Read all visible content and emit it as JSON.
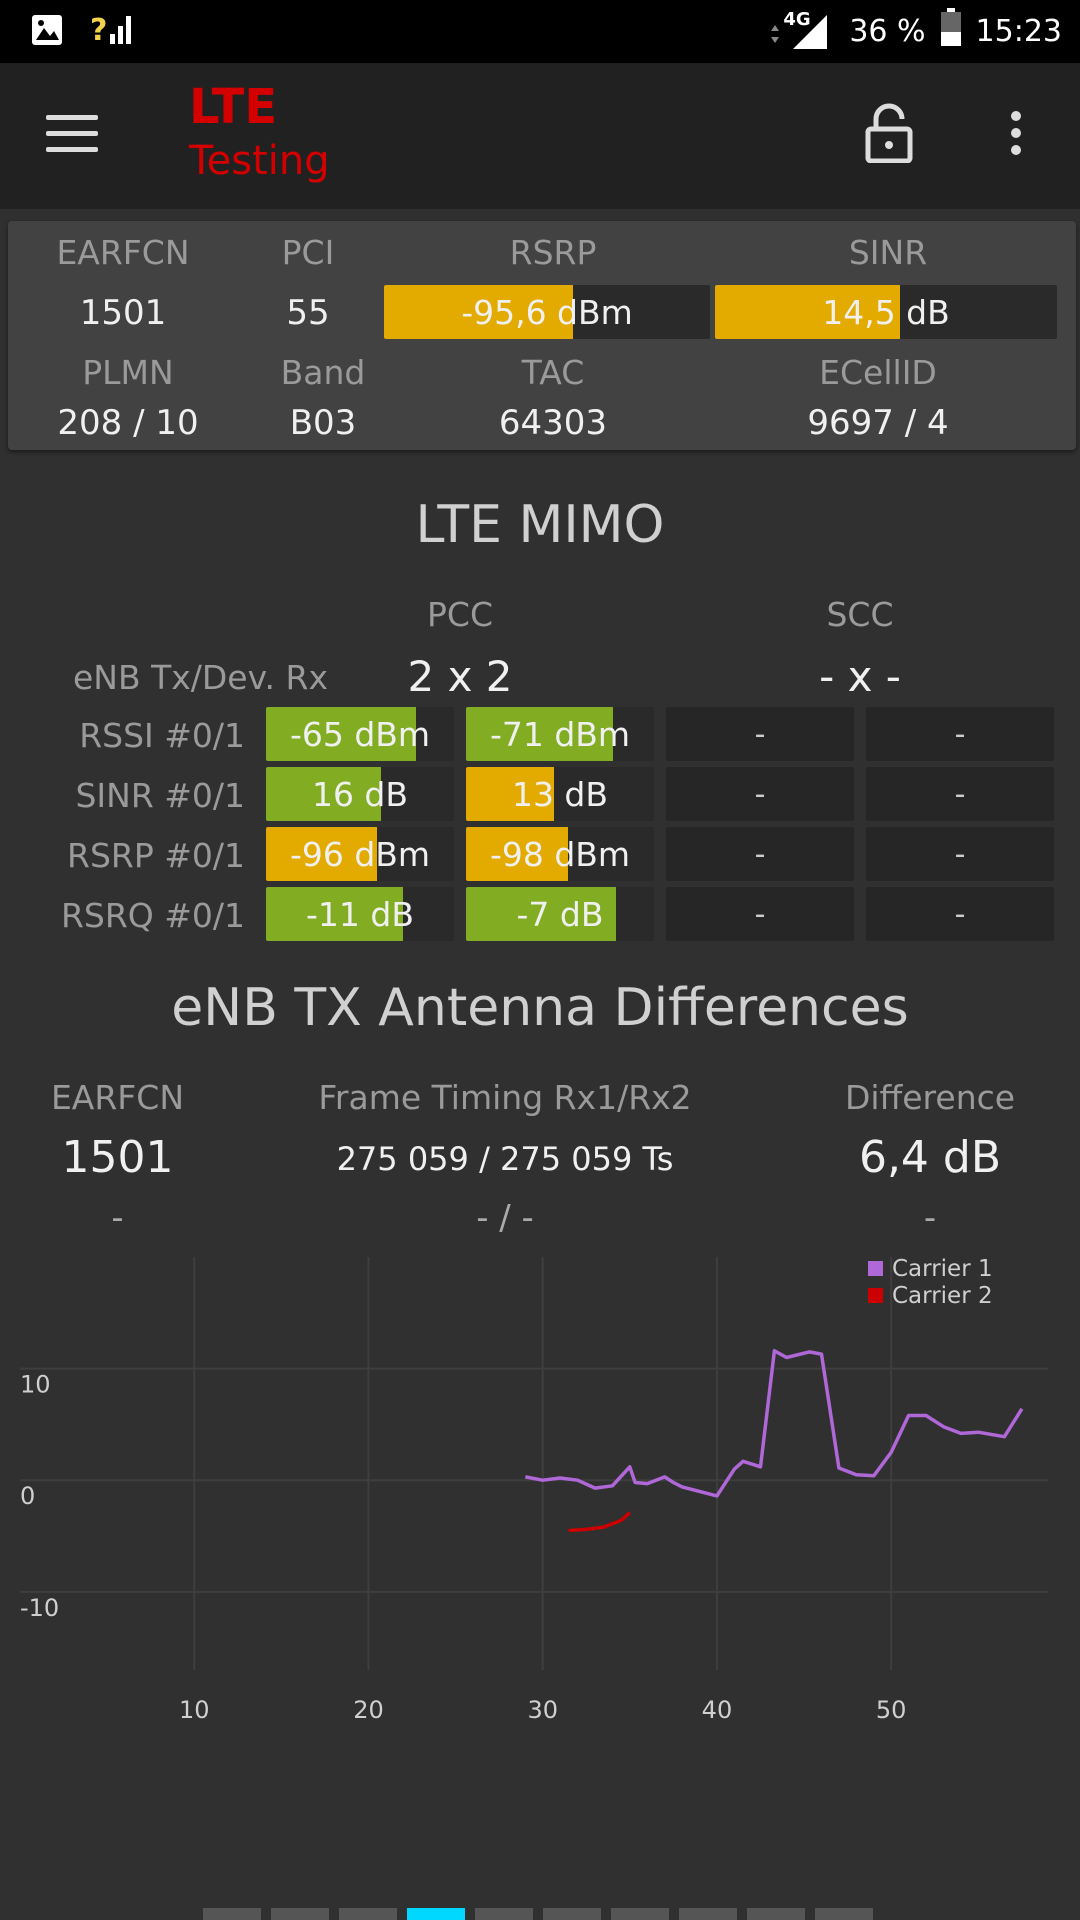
{
  "statusbar": {
    "network_type": "4G",
    "battery": "36 %",
    "time": "15:23"
  },
  "appbar": {
    "title": "LTE",
    "subtitle": "Testing",
    "menu_icon": "hamburger-menu-icon",
    "lock_icon": "lock-icon",
    "more_icon": "more-vert-icon"
  },
  "cell": {
    "labels": {
      "earfcn": "EARFCN",
      "pci": "PCI",
      "rsrp": "RSRP",
      "sinr": "SINR",
      "plmn": "PLMN",
      "band": "Band",
      "tac": "TAC",
      "ecellid": "ECellID"
    },
    "earfcn": "1501",
    "pci": "55",
    "rsrp": "-95,6 dBm",
    "rsrp_level": 0.58,
    "sinr": "14,5 dB",
    "sinr_level": 0.54,
    "plmn": "208 / 10",
    "band": "B03",
    "tac": "64303",
    "ecellid": "9697 / 4"
  },
  "mimo": {
    "title": "LTE MIMO",
    "pcc_label": "PCC",
    "scc_label": "SCC",
    "txrx_label": "eNB Tx/Dev. Rx",
    "pcc_txrx": "2 x 2",
    "scc_txrx": "- x -",
    "rows": [
      {
        "label": "RSSI #0/1",
        "pcc0": "-65 dBm",
        "pcc0_level": 0.8,
        "pcc0_color": "#82ad22",
        "pcc1": "-71 dBm",
        "pcc1_level": 0.78,
        "pcc1_color": "#82ad22",
        "scc0": "-",
        "scc1": "-"
      },
      {
        "label": "SINR #0/1",
        "pcc0": "16 dB",
        "pcc0_level": 0.61,
        "pcc0_color": "#82ad22",
        "pcc1": "13 dB",
        "pcc1_level": 0.47,
        "pcc1_color": "#e3aa00",
        "scc0": "-",
        "scc1": "-"
      },
      {
        "label": "RSRP #0/1",
        "pcc0": "-96 dBm",
        "pcc0_level": 0.59,
        "pcc0_color": "#e3aa00",
        "pcc1": "-98 dBm",
        "pcc1_level": 0.54,
        "pcc1_color": "#e3aa00",
        "scc0": "-",
        "scc1": "-"
      },
      {
        "label": "RSRQ #0/1",
        "pcc0": "-11 dB",
        "pcc0_level": 0.73,
        "pcc0_color": "#82ad22",
        "pcc1": "-7 dB",
        "pcc1_level": 0.8,
        "pcc1_color": "#82ad22",
        "scc0": "-",
        "scc1": "-"
      }
    ]
  },
  "antenna": {
    "title": "eNB TX Antenna Differences",
    "earfcn_label": "EARFCN",
    "timing_label": "Frame Timing Rx1/Rx2",
    "difference_label": "Difference",
    "earfcn1": "1501",
    "timing1": "275 059 / 275 059 Ts",
    "difference1": "6,4 dB",
    "earfcn2": "-",
    "timing2": "- / -",
    "difference2": "-"
  },
  "chart_data": {
    "type": "line",
    "title": "",
    "xlabel": "",
    "ylabel": "",
    "xlim": [
      0,
      59
    ],
    "ylim": [
      -17,
      20
    ],
    "x_ticks": [
      10,
      20,
      30,
      40,
      50
    ],
    "y_ticks": [
      10,
      0,
      -10
    ],
    "x_tick_labels": [
      "10",
      "20",
      "30",
      "40",
      "50"
    ],
    "y_tick_labels": [
      "10",
      "0",
      "-10"
    ],
    "grid": true,
    "legend_position": "top-right",
    "series": [
      {
        "name": "Carrier 1",
        "color": "#b067d8",
        "x": [
          29,
          30,
          31,
          32,
          33,
          34,
          35,
          35.3,
          36,
          37,
          37.5,
          38,
          40,
          41,
          41.5,
          42.5,
          43.3,
          44,
          45.3,
          46,
          47,
          48,
          49,
          50,
          51,
          52,
          53,
          54,
          55,
          56.5,
          57.5
        ],
        "y": [
          0.3,
          0,
          0.2,
          0,
          -0.7,
          -0.5,
          1.2,
          -0.2,
          -0.3,
          0.3,
          -0.2,
          -0.6,
          -1.4,
          1,
          1.7,
          1.2,
          11.6,
          11,
          11.5,
          11.3,
          1.1,
          0.5,
          0.4,
          2.5,
          5.8,
          5.8,
          4.8,
          4.2,
          4.3,
          3.9,
          6.4
        ]
      },
      {
        "name": "Carrier 2",
        "color": "#cc0000",
        "x": [
          31.5,
          32.5,
          33.5,
          34.5,
          35
        ],
        "y": [
          -4.5,
          -4.4,
          -4.2,
          -3.6,
          -2.9
        ]
      }
    ]
  },
  "pager": {
    "count": 10,
    "active_index": 3
  }
}
